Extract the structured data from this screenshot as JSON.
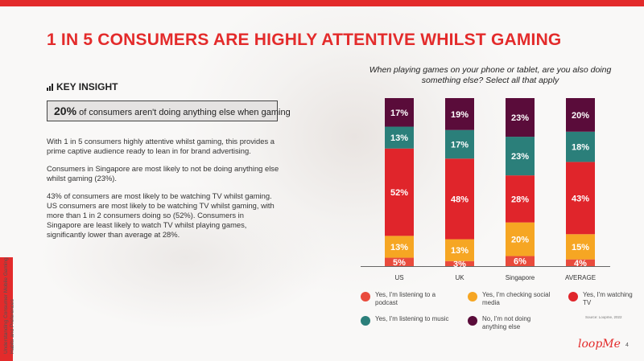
{
  "title": "1 IN 5 CONSUMERS ARE HIGHLY ATTENTIVE WHILST GAMING",
  "key_insight": {
    "heading": "KEY INSIGHT",
    "highlight_value": "20%",
    "highlight_text": " of consumers aren't doing anything else when gaming"
  },
  "body": [
    "With 1 in 5 consumers highly attentive whilst gaming, this provides a prime captive audience ready to lean in for brand advertising.",
    "Consumers in Singapore are most likely to not be doing anything else whilst gaming (23%).",
    "43% of consumers are most likely to be watching TV whilst gaming. US consumers are most likely to be watching TV whilst gaming, with more than 1 in 2 consumers doing so (52%). Consumers in Singapore are least likely to watch TV whilst playing games, significantly lower than average at 28%."
  ],
  "side_text": "Understanding Consumer Mobile Gaming Habits and Preferences",
  "source": "Source: Loopme, 2022",
  "logo": "loopMe",
  "page_number": "4",
  "chart_data": {
    "type": "bar",
    "stacked": true,
    "title": "When playing games on your phone or tablet, are you also doing something else? Select all that apply",
    "categories": [
      "US",
      "UK",
      "Singapore",
      "AVERAGE"
    ],
    "series": [
      {
        "name": "Yes, I'm listening to a podcast",
        "color": "#e94b3c",
        "values": [
          5,
          3,
          6,
          4
        ]
      },
      {
        "name": "Yes, I'm checking social media",
        "color": "#f6a623",
        "values": [
          13,
          13,
          20,
          15
        ]
      },
      {
        "name": "Yes, I'm watching TV",
        "color": "#e0252b",
        "values": [
          52,
          48,
          28,
          43
        ]
      },
      {
        "name": "Yes, I'm listening to music",
        "color": "#2b7f7a",
        "values": [
          13,
          17,
          23,
          18
        ]
      },
      {
        "name": "No, I'm not doing anything else",
        "color": "#5a0c3a",
        "values": [
          17,
          19,
          23,
          20
        ]
      }
    ],
    "value_suffix": "%",
    "legend_position": "bottom",
    "grid": false
  }
}
